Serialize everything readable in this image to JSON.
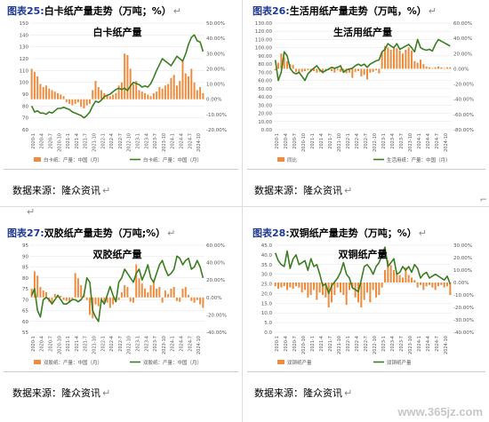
{
  "charts": [
    {
      "header_label": "图表25:",
      "header_text": "白卡纸产量走势（万吨；%）",
      "source": "数据来源：隆众资讯",
      "chart_data": {
        "type": "bar+line",
        "title": "白卡纸产量",
        "left_axis": {
          "min": 60,
          "max": 150,
          "step": 10,
          "labels": [
            "60",
            "70",
            "80",
            "90",
            "100",
            "110",
            "120",
            "130",
            "140",
            "150"
          ]
        },
        "right_axis": {
          "min": -20,
          "max": 50,
          "step": 10,
          "labels": [
            "-20.00%",
            "-10.00%",
            "0.00%",
            "10.00%",
            "20.00%",
            "30.00%",
            "40.00%",
            "50.00%"
          ]
        },
        "x_labels": [
          "2020-1",
          "2020-4",
          "2020-7",
          "2020-10",
          "2021-1",
          "2021-4",
          "2021-7",
          "2021-10",
          "2022-1",
          "2022-4",
          "2022-7",
          "2022-10",
          "2023-1",
          "2023-4",
          "2023-7",
          "2023-10",
          "2024-1",
          "2024-4",
          "2024-7",
          "2024-10"
        ],
        "bar_series": {
          "name": "白卡纸：产量：中国（月）",
          "unit": "%",
          "axis": "right",
          "values": [
            20,
            18,
            15,
            10,
            8,
            9,
            7,
            6,
            5,
            4,
            3,
            2,
            -2,
            -3,
            -4,
            -3,
            -2,
            -5,
            -6,
            -4,
            -3,
            6,
            12,
            8,
            6,
            4,
            3,
            2,
            3,
            4,
            9,
            11,
            30,
            29,
            20,
            10,
            12,
            6,
            5,
            4,
            3,
            2,
            4,
            5,
            8,
            7,
            9,
            10,
            14,
            16,
            9,
            12,
            26,
            17,
            15,
            20,
            11,
            6,
            8,
            4
          ]
        },
        "line_series": {
          "name": "白卡纸：产量：中国（月）",
          "unit": "万吨",
          "axis": "left",
          "values": [
            80,
            75,
            76,
            74,
            74,
            73,
            75,
            74,
            76,
            78,
            78,
            79,
            78,
            77,
            75,
            74,
            73,
            72,
            70,
            72,
            75,
            80,
            84,
            83,
            85,
            88,
            89,
            90,
            92,
            94,
            95,
            94,
            95,
            93,
            97,
            100,
            99,
            98,
            96,
            97,
            96,
            99,
            104,
            110,
            115,
            120,
            118,
            116,
            114,
            118,
            122,
            120,
            118,
            124,
            132,
            138,
            140,
            135,
            134,
            126
          ]
        }
      }
    },
    {
      "header_label": "图表26:",
      "header_text": "生活用纸产量走势（万吨，%）",
      "source": "数据来源：隆众资讯",
      "chart_data": {
        "type": "bar+line",
        "title": "生活用纸产量",
        "left_axis": {
          "min": 0,
          "max": 130,
          "step": 10,
          "labels": [
            "0.00",
            "10.00",
            "20.00",
            "30.00",
            "40.00",
            "50.00",
            "60.00",
            "70.00",
            "80.00",
            "90.00",
            "100.00",
            "110.00",
            "120.00",
            "130.00"
          ]
        },
        "right_axis": {
          "min": -80,
          "max": 60,
          "step": 20,
          "labels": [
            "-80.00%",
            "-60.00%",
            "-40.00%",
            "-20.00%",
            "0.00%",
            "20.00%",
            "40.00%",
            "60.00%"
          ]
        },
        "x_labels": [
          "2020-1",
          "2020-4",
          "2020-7",
          "2020-10",
          "2021-1",
          "2021-4",
          "2021-7",
          "2021-10",
          "2022-1",
          "2022-4",
          "2022-7",
          "2022-10",
          "2023-1",
          "2023-4",
          "2023-7",
          "2023-10",
          "2024-1",
          "2024-4",
          "2024-7",
          "2024-10"
        ],
        "bar_series": {
          "name": "同比",
          "unit": "%",
          "axis": "right",
          "values": [
            -2,
            8,
            20,
            15,
            10,
            6,
            5,
            -4,
            -6,
            -4,
            -3,
            -2,
            -4,
            -3,
            -5,
            -4,
            -6,
            -3,
            -2,
            -3,
            -5,
            -2,
            -4,
            -3,
            -6,
            -5,
            -12,
            -4,
            -3,
            -10,
            -8,
            -14,
            -5,
            -4,
            -2,
            -6,
            22,
            30,
            28,
            25,
            29,
            27,
            24,
            20,
            25,
            28,
            24,
            10,
            8,
            12,
            6,
            3,
            2,
            1,
            2,
            3,
            2,
            1,
            2,
            2
          ]
        },
        "line_series": {
          "name": "生活用纸：产量：中国（月）",
          "unit": "万吨",
          "axis": "left",
          "values": [
            85,
            60,
            70,
            95,
            90,
            75,
            70,
            68,
            70,
            65,
            60,
            68,
            72,
            75,
            78,
            73,
            70,
            72,
            74,
            76,
            75,
            76,
            78,
            70,
            73,
            74,
            75,
            78,
            80,
            78,
            80,
            76,
            80,
            82,
            84,
            85,
            95,
            98,
            105,
            102,
            100,
            105,
            98,
            100,
            102,
            104,
            100,
            95,
            110,
            100,
            98,
            97,
            98,
            96,
            104,
            110,
            108,
            106,
            104,
            102
          ]
        }
      }
    },
    {
      "header_label": "图表27:",
      "header_text": "双胶纸产量走势（万吨;%）",
      "source": "数据来源：隆众资讯",
      "chart_data": {
        "type": "bar+line",
        "title": "双胶纸产量",
        "left_axis": {
          "min": 55,
          "max": 95,
          "step": 5,
          "labels": [
            "55",
            "60",
            "65",
            "70",
            "75",
            "80",
            "85",
            "90",
            "95"
          ]
        },
        "right_axis": {
          "min": -40,
          "max": 60,
          "step": 20,
          "labels": [
            "-40.00%",
            "-20.00%",
            "0.00%",
            "20.00%",
            "40.00%",
            "60.00%"
          ]
        },
        "x_labels": [
          "2020-1",
          "2020-4",
          "2020-7",
          "2020-10",
          "2021-1",
          "2021-4",
          "2021-7",
          "2021-10",
          "2022-1",
          "2022-4",
          "2022-7",
          "2022-10",
          "2023-1",
          "2023-4",
          "2023-7",
          "2023-10",
          "2024-1",
          "2024-4",
          "2024-7",
          "2024-10"
        ],
        "bar_series": {
          "name": "双胶纸：产量：中国（月）",
          "unit": "%",
          "axis": "right",
          "values": [
            10,
            30,
            25,
            12,
            8,
            6,
            -5,
            -6,
            4,
            3,
            2,
            -3,
            -4,
            -6,
            -2,
            28,
            22,
            14,
            5,
            -3,
            -20,
            -24,
            -8,
            -10,
            -4,
            -5,
            -6,
            -12,
            -8,
            -4,
            -3,
            6,
            14,
            12,
            -5,
            -6,
            38,
            22,
            16,
            10,
            6,
            14,
            18,
            10,
            12,
            -6,
            8,
            4,
            10,
            12,
            -4,
            -5,
            10,
            12,
            3,
            -4,
            -6,
            -3,
            -8,
            -12
          ]
        },
        "line_series": {
          "name": "双胶纸：产量：中国（月）",
          "unit": "万吨",
          "axis": "left",
          "values": [
            72,
            75,
            65,
            62,
            70,
            71,
            70,
            68,
            70,
            72,
            70,
            68,
            68,
            69,
            70,
            70,
            69,
            70,
            72,
            80,
            78,
            65,
            62,
            60,
            70,
            68,
            72,
            76,
            72,
            69,
            78,
            80,
            84,
            82,
            80,
            78,
            82,
            84,
            79,
            82,
            86,
            80,
            78,
            82,
            86,
            88,
            84,
            81,
            82,
            84,
            90,
            89,
            86,
            88,
            89,
            84,
            85,
            88,
            85,
            80
          ]
        }
      }
    },
    {
      "header_label": "图表28:",
      "header_text": "双铜纸产量走势（万吨；%）",
      "source": "数据来源：隆众资讯",
      "chart_data": {
        "type": "bar+line",
        "title": "双铜纸产量",
        "left_axis": {
          "min": 0,
          "max": 45,
          "step": 5,
          "labels": [
            "0.0",
            "5.0",
            "10.0",
            "15.0",
            "20.0",
            "25.0",
            "30.0",
            "35.0",
            "40.0",
            "45.0"
          ]
        },
        "right_axis": {
          "min": -40,
          "max": 30,
          "step": 10,
          "labels": [
            "-40.00%",
            "-30.00%",
            "-20.00%",
            "-10.00%",
            "0.00%",
            "10.00%",
            "20.00%",
            "30.00%"
          ]
        },
        "x_labels": [
          "2020-1",
          "2020-4",
          "2020-7",
          "2020-10",
          "2021-1",
          "2021-4",
          "2021-7",
          "2021-10",
          "2022-1",
          "2022-4",
          "2022-7",
          "2022-10",
          "2023-1",
          "2023-4",
          "2023-7",
          "2023-10",
          "2024-1",
          "2024-4",
          "2024-7",
          "2024-10"
        ],
        "bar_series": {
          "name": "双铜纸产量",
          "unit": "%",
          "axis": "right",
          "values": [
            -3,
            -5,
            -4,
            -3,
            -6,
            -4,
            -5,
            -3,
            -4,
            -8,
            -6,
            -12,
            -10,
            -6,
            -14,
            -8,
            -10,
            -12,
            -20,
            -16,
            -10,
            -4,
            -8,
            -10,
            -18,
            -6,
            -4,
            -12,
            -16,
            -20,
            -14,
            -8,
            -16,
            -6,
            -12,
            -10,
            -4,
            10,
            18,
            14,
            10,
            8,
            6,
            4,
            12,
            6,
            4,
            2,
            -4,
            -2,
            -6,
            -3,
            -2,
            -4,
            -6,
            -3,
            -2,
            -4,
            -3,
            -10
          ]
        },
        "line_series": {
          "name": "双铜纸产量",
          "unit": "万吨",
          "axis": "left",
          "values": [
            41,
            37,
            35,
            34,
            42,
            33,
            38,
            40,
            35,
            36,
            37,
            32,
            38,
            34,
            35,
            30,
            24,
            25,
            20,
            24,
            26,
            28,
            31,
            36,
            30,
            28,
            23,
            22,
            21,
            27,
            34,
            35,
            33,
            30,
            34,
            36,
            40,
            44,
            34,
            36,
            38,
            30,
            31,
            34,
            32,
            34,
            31,
            35,
            33,
            28,
            30,
            31,
            28,
            29,
            30,
            29,
            28,
            27,
            29,
            25
          ]
        }
      }
    }
  ],
  "colors": {
    "bar": "#f08a3c",
    "line": "#3a7d22",
    "axis_text": "#555555",
    "grid": "#e6e6e6",
    "title": "#000000"
  },
  "watermark": "www.365jz.com"
}
